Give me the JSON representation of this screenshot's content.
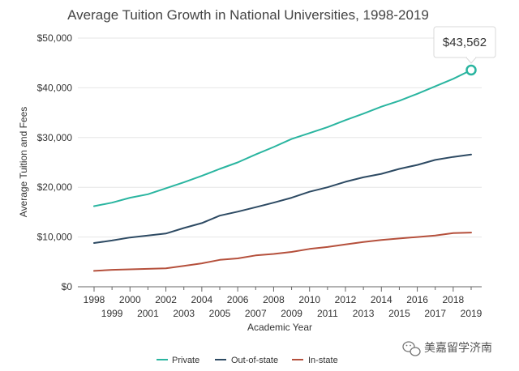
{
  "chart_data": {
    "type": "line",
    "title": "Average Tuition Growth in National Universities, 1998-2019",
    "xlabel": "Academic Year",
    "ylabel": "Average Tuition and Fees",
    "x": [
      1998,
      1999,
      2000,
      2001,
      2002,
      2003,
      2004,
      2005,
      2006,
      2007,
      2008,
      2009,
      2010,
      2011,
      2012,
      2013,
      2014,
      2015,
      2016,
      2017,
      2018,
      2019
    ],
    "x_tick_labels": [
      "1998",
      "1999",
      "2000",
      "2001",
      "2002",
      "2003",
      "2004",
      "2005",
      "2006",
      "2007",
      "2008",
      "2009",
      "2010",
      "2011",
      "2012",
      "2013",
      "2014",
      "2015",
      "2016",
      "2017",
      "2018",
      "2019"
    ],
    "ylim": [
      0,
      50000
    ],
    "y_ticks": [
      0,
      10000,
      20000,
      30000,
      40000,
      50000
    ],
    "y_tick_labels": [
      "$0",
      "$10,000",
      "$20,000",
      "$30,000",
      "$40,000",
      "$50,000"
    ],
    "grid": true,
    "legend_position": "bottom",
    "series": [
      {
        "name": "Private",
        "color": "#2ab5a0",
        "values": [
          16200,
          16900,
          17900,
          18600,
          19800,
          21000,
          22300,
          23700,
          25000,
          26600,
          28100,
          29700,
          30900,
          32100,
          33500,
          34800,
          36200,
          37400,
          38800,
          40300,
          41800,
          43562
        ]
      },
      {
        "name": "Out-of-state",
        "color": "#2d4a63",
        "values": [
          8800,
          9300,
          9900,
          10300,
          10700,
          11800,
          12800,
          14300,
          15100,
          16000,
          16900,
          17900,
          19100,
          20000,
          21100,
          22000,
          22700,
          23700,
          24500,
          25500,
          26100,
          26600
        ]
      },
      {
        "name": "In-state",
        "color": "#b5503c",
        "values": [
          3200,
          3400,
          3500,
          3600,
          3700,
          4200,
          4700,
          5400,
          5700,
          6300,
          6600,
          7000,
          7600,
          8000,
          8500,
          9000,
          9400,
          9700,
          10000,
          10300,
          10800,
          10900
        ]
      }
    ],
    "annotations": [
      {
        "series": "Private",
        "x": 2019,
        "label": "$43,562"
      }
    ]
  },
  "watermark": {
    "icon": "wechat-icon",
    "text": "美嘉留学济南"
  }
}
